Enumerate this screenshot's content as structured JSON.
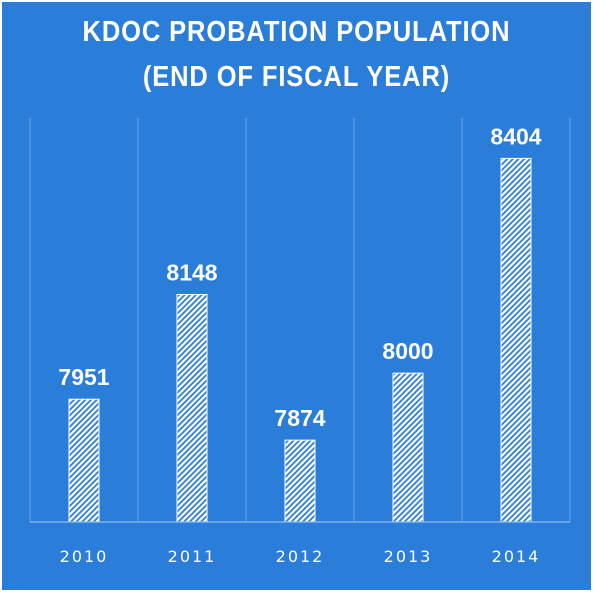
{
  "chart_data": {
    "type": "bar",
    "title_line1": "KDOC PROBATION POPULATION",
    "title_line2": "(END OF FISCAL YEAR)",
    "categories": [
      "2010",
      "2011",
      "2012",
      "2013",
      "2014"
    ],
    "values": [
      7951,
      8148,
      7874,
      8000,
      8404
    ],
    "data_labels": [
      "7951",
      "8148",
      "7874",
      "8000",
      "8404"
    ],
    "xlabel": "",
    "ylabel": "",
    "ylim": [
      7720,
      8480
    ],
    "grid": "vertical separators",
    "legend": "none",
    "bar_fill": "white diagonal hatch",
    "colors": {
      "background": "#2a7dd8",
      "bar": "#ffffff",
      "grid": "#6aa6ea",
      "text": "#ffffff"
    }
  }
}
